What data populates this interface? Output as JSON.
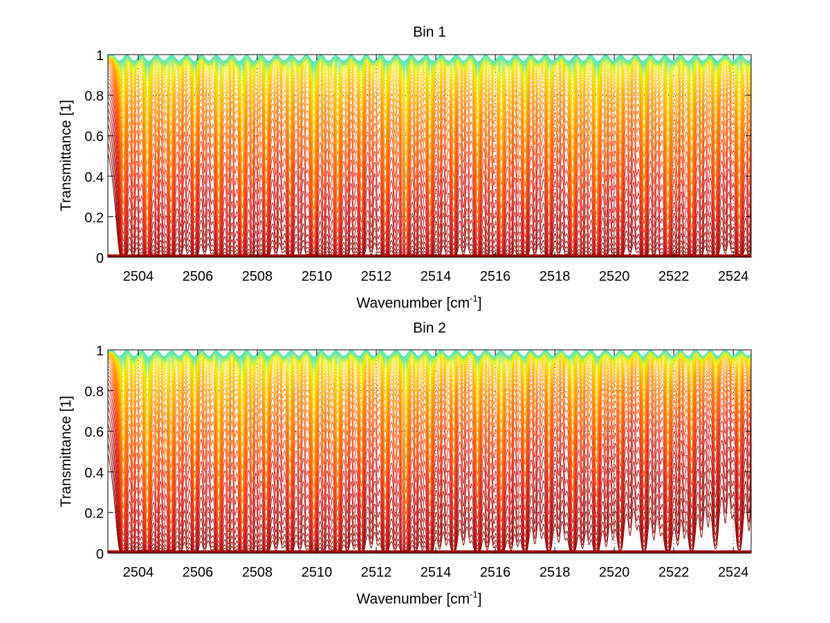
{
  "chart_data": [
    {
      "type": "line",
      "title": "Bin 1",
      "xlabel": "Wavenumber [cm",
      "xlabel_sup": "-1",
      "xlabel_suffix": "]",
      "ylabel": "Transmittance [1]",
      "xlim": [
        2502.98,
        2524.6
      ],
      "ylim": [
        0,
        1
      ],
      "xticks": [
        2504,
        2506,
        2508,
        2510,
        2512,
        2514,
        2516,
        2518,
        2520,
        2522,
        2524
      ],
      "xtick_labels": [
        "2504",
        "2506",
        "2508",
        "2510",
        "2512",
        "2514",
        "2516",
        "2518",
        "2520",
        "2522",
        "2524"
      ],
      "yticks": [
        0,
        0.2,
        0.4,
        0.6,
        0.8,
        1
      ],
      "ytick_labels": [
        "0",
        "0.2",
        "0.4",
        "0.6",
        "0.8",
        "1"
      ],
      "grid": true,
      "legend": "none",
      "colormap": "autumn-to-green (dark red = low transmittance, yellow/green = high)",
      "series_description": "Family of ~50 transmittance spectra for increasing absorber amount; strong absorption lines approx every 0.77 cm-1 with weaker intermediate lines",
      "line_strength_trend": "uniform",
      "strong_line_positions": [
        2503.5,
        2504.3,
        2505.1,
        2505.9,
        2506.7,
        2507.5,
        2508.3,
        2509.1,
        2509.9,
        2510.7,
        2511.5,
        2512.3,
        2513.0,
        2513.8,
        2514.6,
        2515.4,
        2516.2,
        2517.0,
        2517.8,
        2518.6,
        2519.4,
        2520.2,
        2521.0,
        2521.8,
        2522.6,
        2523.4,
        2524.2
      ],
      "num_curves": 50
    },
    {
      "type": "line",
      "title": "Bin 2",
      "xlabel": "Wavenumber [cm",
      "xlabel_sup": "-1",
      "xlabel_suffix": "]",
      "ylabel": "Transmittance [1]",
      "xlim": [
        2502.98,
        2524.6
      ],
      "ylim": [
        0,
        1
      ],
      "xticks": [
        2504,
        2506,
        2508,
        2510,
        2512,
        2514,
        2516,
        2518,
        2520,
        2522,
        2524
      ],
      "xtick_labels": [
        "2504",
        "2506",
        "2508",
        "2510",
        "2512",
        "2514",
        "2516",
        "2518",
        "2520",
        "2522",
        "2524"
      ],
      "yticks": [
        0,
        0.2,
        0.4,
        0.6,
        0.8,
        1
      ],
      "ytick_labels": [
        "0",
        "0.2",
        "0.4",
        "0.6",
        "0.8",
        "1"
      ],
      "grid": true,
      "legend": "none",
      "colormap": "autumn-to-green (dark red = low transmittance, yellow/green = high)",
      "series_description": "Family of ~50 transmittance spectra for increasing absorber amount; absorption weakens toward higher wavenumbers",
      "line_strength_trend": "decreasing",
      "strong_line_positions": [
        2503.5,
        2504.3,
        2505.1,
        2505.9,
        2506.7,
        2507.5,
        2508.3,
        2509.1,
        2509.9,
        2510.7,
        2511.5,
        2512.3,
        2513.0,
        2513.8,
        2514.6,
        2515.4,
        2516.2,
        2517.0,
        2517.8,
        2518.6,
        2519.4,
        2520.2,
        2521.0,
        2521.8,
        2522.6,
        2523.4,
        2524.2
      ],
      "num_curves": 50
    }
  ]
}
